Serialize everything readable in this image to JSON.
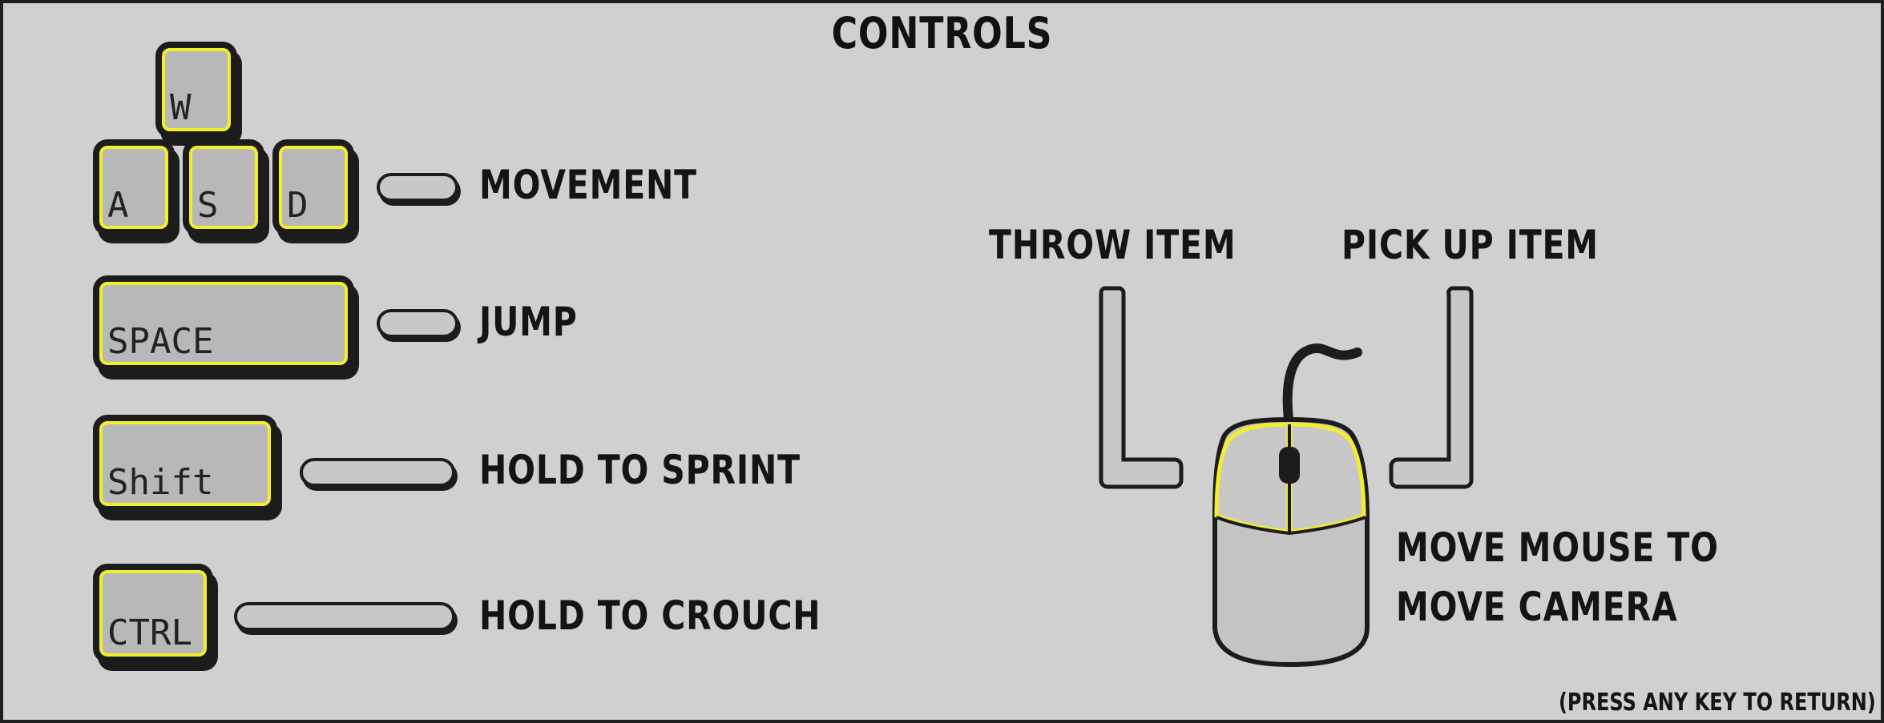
{
  "screen": {
    "title": "CONTROLS",
    "return_hint": "(PRESS ANY KEY TO RETURN)"
  },
  "keys": {
    "w": "W",
    "a": "A",
    "s": "S",
    "d": "D",
    "space": "SPACE",
    "shift": "Shift",
    "ctrl": "CTRL"
  },
  "actions": {
    "movement": "MOVEMENT",
    "jump": "JUMP",
    "sprint": "HOLD TO SPRINT",
    "crouch": "HOLD TO CROUCH"
  },
  "mouse": {
    "left_click": "THROW ITEM",
    "right_click": "PICK UP ITEM",
    "move_line1": "MOVE MOUSE TO",
    "move_line2": "MOVE CAMERA"
  },
  "colors": {
    "background": "#d0d0d0",
    "key_highlight": "#f2ee2a",
    "key_fill": "#b8b8b8",
    "outline": "#1c1c1c"
  }
}
